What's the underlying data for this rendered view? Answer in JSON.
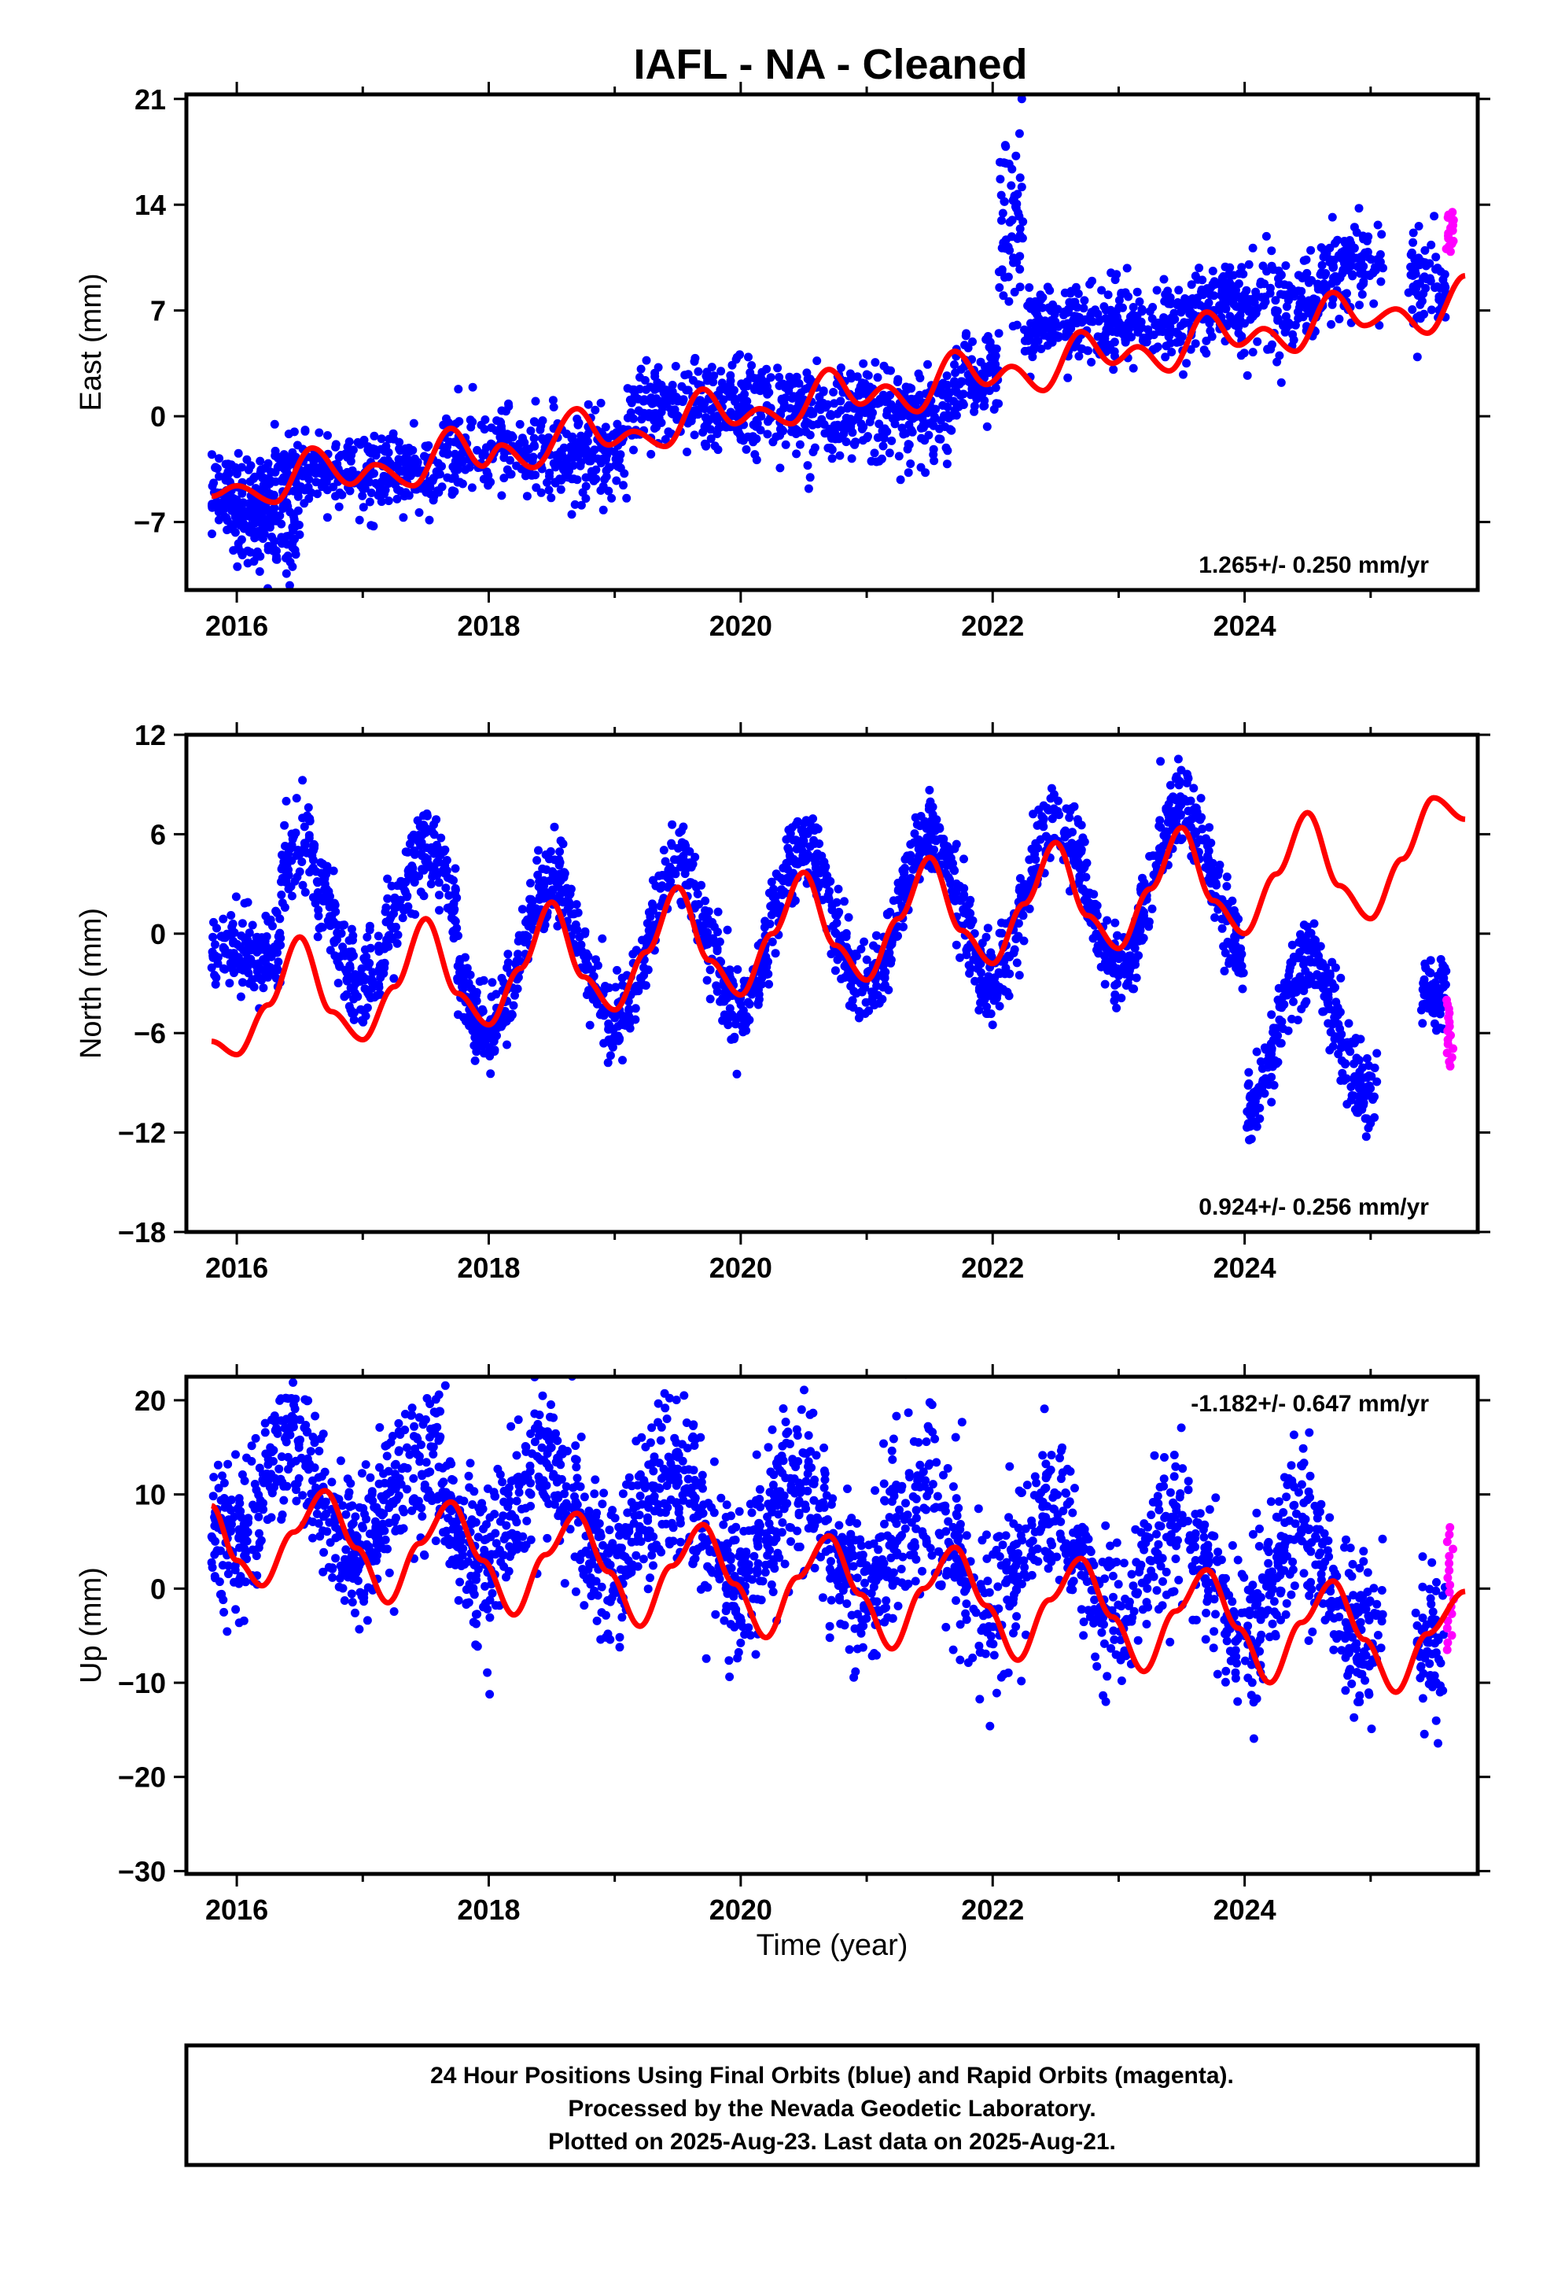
{
  "chart_data": {
    "type": "scatter",
    "title": "IAFL  - NA - Cleaned",
    "xlabel": "Time (year)",
    "xlim": [
      2015.6,
      2025.85
    ],
    "xticks": [
      2016,
      2018,
      2020,
      2022,
      2024
    ],
    "xtick_labels": [
      "2016",
      "2018",
      "2020",
      "2022",
      "2024"
    ],
    "colors": {
      "final_orbits": "#0000ff",
      "rapid_orbits": "#ff00ff",
      "model_fit": "#ff0000",
      "frame": "#000000"
    },
    "panels": [
      {
        "name": "east",
        "ylabel": "East (mm)",
        "ylim": [
          -11.5,
          21.3
        ],
        "yticks": [
          21,
          14,
          7,
          0,
          -7
        ],
        "ytick_labels": [
          "21",
          "14",
          "7",
          "0",
          "−7"
        ],
        "rate": "1.265+/- 0.250 mm/yr",
        "rate_position": "bottom-right",
        "model": {
          "start": 2015.8,
          "end": 2025.75,
          "samples": [
            {
              "t": 2015.8,
              "v": -5.3
            },
            {
              "t": 2016.0,
              "v": -4.6
            },
            {
              "t": 2016.3,
              "v": -5.7
            },
            {
              "t": 2016.6,
              "v": -2.1
            },
            {
              "t": 2016.9,
              "v": -4.5
            },
            {
              "t": 2017.1,
              "v": -3.2
            },
            {
              "t": 2017.4,
              "v": -4.6
            },
            {
              "t": 2017.7,
              "v": -0.8
            },
            {
              "t": 2017.95,
              "v": -3.3
            },
            {
              "t": 2018.1,
              "v": -1.9
            },
            {
              "t": 2018.35,
              "v": -3.4
            },
            {
              "t": 2018.7,
              "v": 0.5
            },
            {
              "t": 2018.95,
              "v": -1.9
            },
            {
              "t": 2019.15,
              "v": -1.0
            },
            {
              "t": 2019.4,
              "v": -2.0
            },
            {
              "t": 2019.7,
              "v": 1.8
            },
            {
              "t": 2019.95,
              "v": -0.5
            },
            {
              "t": 2020.15,
              "v": 0.5
            },
            {
              "t": 2020.4,
              "v": -0.5
            },
            {
              "t": 2020.7,
              "v": 3.1
            },
            {
              "t": 2020.95,
              "v": 0.8
            },
            {
              "t": 2021.15,
              "v": 2.0
            },
            {
              "t": 2021.4,
              "v": 0.3
            },
            {
              "t": 2021.7,
              "v": 4.3
            },
            {
              "t": 2021.95,
              "v": 2.1
            },
            {
              "t": 2022.15,
              "v": 3.3
            },
            {
              "t": 2022.4,
              "v": 1.7
            },
            {
              "t": 2022.7,
              "v": 5.6
            },
            {
              "t": 2022.95,
              "v": 3.5
            },
            {
              "t": 2023.15,
              "v": 4.6
            },
            {
              "t": 2023.4,
              "v": 3.0
            },
            {
              "t": 2023.7,
              "v": 6.9
            },
            {
              "t": 2023.95,
              "v": 4.7
            },
            {
              "t": 2024.15,
              "v": 5.8
            },
            {
              "t": 2024.4,
              "v": 4.3
            },
            {
              "t": 2024.7,
              "v": 8.2
            },
            {
              "t": 2024.95,
              "v": 6.0
            },
            {
              "t": 2025.2,
              "v": 7.1
            },
            {
              "t": 2025.45,
              "v": 5.5
            },
            {
              "t": 2025.75,
              "v": 9.3
            }
          ]
        },
        "final_segments": [
          {
            "t0": 2015.8,
            "t1": 2016.3,
            "mean": -5.5,
            "noise": 1.4,
            "density": 160
          },
          {
            "t0": 2016.0,
            "t1": 2016.5,
            "mean": -7.5,
            "noise": 1.6,
            "density": 90
          },
          {
            "t0": 2016.3,
            "t1": 2017.6,
            "mean": -3.8,
            "noise": 1.2,
            "density": 300
          },
          {
            "t0": 2017.6,
            "t1": 2019.1,
            "mean": -2.5,
            "noise": 1.4,
            "density": 340
          },
          {
            "t0": 2019.1,
            "t1": 2020.5,
            "mean": 0.5,
            "noise": 1.5,
            "density": 330
          },
          {
            "t0": 2020.5,
            "t1": 2021.7,
            "mean": 0.2,
            "noise": 1.5,
            "density": 300
          },
          {
            "t0": 2021.7,
            "t1": 2022.05,
            "mean": 2.5,
            "noise": 1.5,
            "density": 90
          },
          {
            "t0": 2022.05,
            "t1": 2022.25,
            "mean": 13.5,
            "noise": 3.2,
            "density": 60
          },
          {
            "t0": 2022.25,
            "t1": 2023.6,
            "mean": 6.0,
            "noise": 1.4,
            "density": 320
          },
          {
            "t0": 2023.6,
            "t1": 2024.6,
            "mean": 7.2,
            "noise": 1.5,
            "density": 240
          },
          {
            "t0": 2024.6,
            "t1": 2025.1,
            "mean": 10.0,
            "noise": 1.5,
            "density": 120
          },
          {
            "t0": 2025.3,
            "t1": 2025.6,
            "mean": 9.0,
            "noise": 1.5,
            "density": 70
          }
        ],
        "rapid_segment": {
          "t0": 2025.6,
          "t1": 2025.66,
          "mean": 12.2,
          "noise": 1.3,
          "count": 16
        }
      },
      {
        "name": "north",
        "ylabel": "North (mm)",
        "ylim": [
          -18,
          12
        ],
        "yticks": [
          12,
          6,
          0,
          -6,
          -12,
          -18
        ],
        "ytick_labels": [
          "12",
          "6",
          "0",
          "−6",
          "−12",
          "−18"
        ],
        "rate": "0.924+/- 0.256 mm/yr",
        "rate_position": "bottom-right",
        "model": {
          "start": 2015.8,
          "end": 2025.75,
          "samples": [
            {
              "t": 2015.8,
              "v": -6.5
            },
            {
              "t": 2016.0,
              "v": -7.3
            },
            {
              "t": 2016.25,
              "v": -4.3
            },
            {
              "t": 2016.5,
              "v": -0.2
            },
            {
              "t": 2016.75,
              "v": -4.7
            },
            {
              "t": 2017.0,
              "v": -6.4
            },
            {
              "t": 2017.25,
              "v": -3.2
            },
            {
              "t": 2017.5,
              "v": 0.9
            },
            {
              "t": 2017.75,
              "v": -3.6
            },
            {
              "t": 2018.0,
              "v": -5.5
            },
            {
              "t": 2018.25,
              "v": -2.1
            },
            {
              "t": 2018.5,
              "v": 1.9
            },
            {
              "t": 2018.75,
              "v": -2.6
            },
            {
              "t": 2019.0,
              "v": -4.6
            },
            {
              "t": 2019.25,
              "v": -1.1
            },
            {
              "t": 2019.5,
              "v": 2.8
            },
            {
              "t": 2019.75,
              "v": -1.6
            },
            {
              "t": 2020.0,
              "v": -3.7
            },
            {
              "t": 2020.25,
              "v": 0.0
            },
            {
              "t": 2020.5,
              "v": 3.7
            },
            {
              "t": 2020.75,
              "v": -0.7
            },
            {
              "t": 2021.0,
              "v": -2.8
            },
            {
              "t": 2021.25,
              "v": 0.9
            },
            {
              "t": 2021.5,
              "v": 4.6
            },
            {
              "t": 2021.75,
              "v": 0.2
            },
            {
              "t": 2022.0,
              "v": -1.8
            },
            {
              "t": 2022.25,
              "v": 1.8
            },
            {
              "t": 2022.5,
              "v": 5.5
            },
            {
              "t": 2022.75,
              "v": 1.1
            },
            {
              "t": 2023.0,
              "v": -0.9
            },
            {
              "t": 2023.25,
              "v": 2.7
            },
            {
              "t": 2023.5,
              "v": 6.4
            },
            {
              "t": 2023.75,
              "v": 2.0
            },
            {
              "t": 2024.0,
              "v": 0.0
            },
            {
              "t": 2024.25,
              "v": 3.6
            },
            {
              "t": 2024.5,
              "v": 7.3
            },
            {
              "t": 2024.75,
              "v": 2.9
            },
            {
              "t": 2025.0,
              "v": 0.9
            },
            {
              "t": 2025.25,
              "v": 4.5
            },
            {
              "t": 2025.5,
              "v": 8.2
            },
            {
              "t": 2025.75,
              "v": 6.9
            }
          ]
        },
        "final_segments": [
          {
            "t0": 2015.8,
            "t1": 2016.35,
            "mean": -1.0,
            "noise": 1.3,
            "density": 150
          },
          {
            "t0": 2016.35,
            "t1": 2017.75,
            "mean": 1.0,
            "noise": 1.3,
            "density": 380,
            "seasonal": 4.0,
            "phase": 0.5
          },
          {
            "t0": 2017.75,
            "t1": 2024.0,
            "mean": 0.5,
            "noise": 1.2,
            "density": 1700,
            "seasonal": 4.5,
            "phase": 0.5,
            "trend": 0.9
          },
          {
            "t0": 2024.0,
            "t1": 2025.05,
            "mean": -9.5,
            "noise": 1.3,
            "density": 280,
            "seasonal": 4.5,
            "phase": 0.5,
            "trend": 0.9
          },
          {
            "t0": 2025.4,
            "t1": 2025.6,
            "mean": -3.5,
            "noise": 1.0,
            "density": 60
          }
        ],
        "rapid_segment": {
          "t0": 2025.6,
          "t1": 2025.66,
          "mean": -6.0,
          "noise": 2.0,
          "count": 16
        }
      },
      {
        "name": "up",
        "ylabel": "Up (mm)",
        "ylim": [
          -30.3,
          22.5
        ],
        "yticks": [
          20,
          10,
          0,
          -10,
          -20,
          -30
        ],
        "ytick_labels": [
          "20",
          "10",
          "0",
          "−10",
          "−20",
          "−30"
        ],
        "rate": "-1.182+/- 0.647 mm/yr",
        "rate_position": "top-right",
        "model": {
          "start": 2015.8,
          "end": 2025.75,
          "samples": [
            {
              "t": 2015.8,
              "v": 8.8
            },
            {
              "t": 2016.0,
              "v": 3.0
            },
            {
              "t": 2016.2,
              "v": 0.3
            },
            {
              "t": 2016.45,
              "v": 6.0
            },
            {
              "t": 2016.7,
              "v": 10.4
            },
            {
              "t": 2016.95,
              "v": 4.3
            },
            {
              "t": 2017.2,
              "v": -1.5
            },
            {
              "t": 2017.45,
              "v": 4.8
            },
            {
              "t": 2017.7,
              "v": 9.2
            },
            {
              "t": 2017.95,
              "v": 3.0
            },
            {
              "t": 2018.2,
              "v": -2.8
            },
            {
              "t": 2018.45,
              "v": 3.6
            },
            {
              "t": 2018.7,
              "v": 8.0
            },
            {
              "t": 2018.95,
              "v": 1.8
            },
            {
              "t": 2019.2,
              "v": -4.0
            },
            {
              "t": 2019.45,
              "v": 2.4
            },
            {
              "t": 2019.7,
              "v": 6.8
            },
            {
              "t": 2019.95,
              "v": 0.5
            },
            {
              "t": 2020.2,
              "v": -5.2
            },
            {
              "t": 2020.45,
              "v": 1.2
            },
            {
              "t": 2020.7,
              "v": 5.6
            },
            {
              "t": 2020.95,
              "v": -0.6
            },
            {
              "t": 2021.2,
              "v": -6.4
            },
            {
              "t": 2021.45,
              "v": 0.0
            },
            {
              "t": 2021.7,
              "v": 4.4
            },
            {
              "t": 2021.95,
              "v": -1.8
            },
            {
              "t": 2022.2,
              "v": -7.6
            },
            {
              "t": 2022.45,
              "v": -1.2
            },
            {
              "t": 2022.7,
              "v": 3.2
            },
            {
              "t": 2022.95,
              "v": -3.0
            },
            {
              "t": 2023.2,
              "v": -8.8
            },
            {
              "t": 2023.45,
              "v": -2.4
            },
            {
              "t": 2023.7,
              "v": 2.0
            },
            {
              "t": 2023.95,
              "v": -4.2
            },
            {
              "t": 2024.2,
              "v": -10.0
            },
            {
              "t": 2024.45,
              "v": -3.6
            },
            {
              "t": 2024.7,
              "v": 0.8
            },
            {
              "t": 2024.95,
              "v": -5.4
            },
            {
              "t": 2025.2,
              "v": -11.0
            },
            {
              "t": 2025.45,
              "v": -4.8
            },
            {
              "t": 2025.75,
              "v": -0.3
            }
          ]
        },
        "final_segments": [
          {
            "t0": 2015.8,
            "t1": 2025.1,
            "mean": 5.2,
            "noise": 4.2,
            "density": 2600,
            "seasonal": 5.5,
            "phase": 0.45,
            "trend": -1.18
          },
          {
            "t0": 2025.35,
            "t1": 2025.6,
            "mean": -6.0,
            "noise": 4.5,
            "density": 60
          }
        ],
        "rapid_segment": {
          "t0": 2025.6,
          "t1": 2025.66,
          "mean": 0.0,
          "noise": 6.5,
          "count": 18
        }
      }
    ],
    "footer": [
      "24 Hour Positions Using Final Orbits (blue) and Rapid Orbits (magenta).",
      "Processed by the Nevada Geodetic Laboratory.",
      "Plotted on 2025-Aug-23. Last data on 2025-Aug-21."
    ]
  }
}
